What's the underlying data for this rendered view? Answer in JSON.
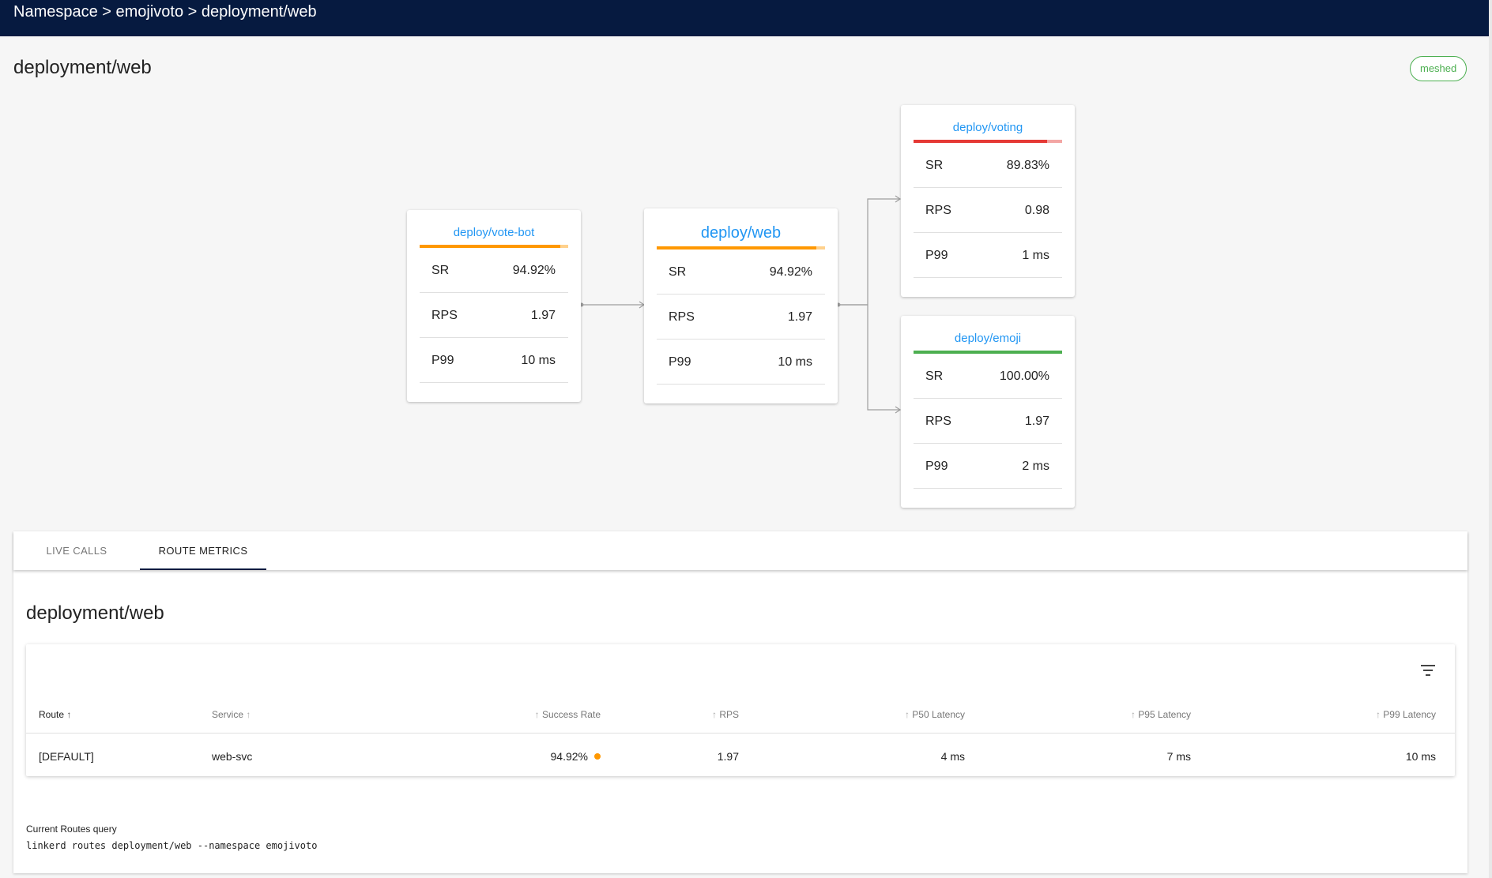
{
  "breadcrumb": {
    "namespace": "Namespace",
    "sep": " > ",
    "ns_name": "emojivoto",
    "resource": "deployment/web"
  },
  "page": {
    "title": "deployment/web",
    "badge": "meshed"
  },
  "graph": {
    "nodes": {
      "votebot": {
        "title": "deploy/vote-bot",
        "sr": "94.92%",
        "rps": "1.97",
        "p99": "10 ms",
        "sr_fraction": 0.9492,
        "color": "#ff9800"
      },
      "web": {
        "title": "deploy/web",
        "sr": "94.92%",
        "rps": "1.97",
        "p99": "10 ms",
        "sr_fraction": 0.9492,
        "color": "#ff9800"
      },
      "voting": {
        "title": "deploy/voting",
        "sr": "89.83%",
        "rps": "0.98",
        "p99": "1 ms",
        "sr_fraction": 0.8983,
        "color": "#e53935"
      },
      "emoji": {
        "title": "deploy/emoji",
        "sr": "100.00%",
        "rps": "1.97",
        "p99": "2 ms",
        "sr_fraction": 1.0,
        "color": "#4caf50"
      }
    },
    "labels": {
      "sr": "SR",
      "rps": "RPS",
      "p99": "P99"
    }
  },
  "tabs": [
    {
      "label": "LIVE CALLS"
    },
    {
      "label": "ROUTE METRICS"
    }
  ],
  "route_metrics": {
    "title": "deployment/web",
    "columns": {
      "route": "Route",
      "service": "Service",
      "success_rate": "Success Rate",
      "rps": "RPS",
      "p50": "P50 Latency",
      "p95": "P95 Latency",
      "p99": "P99 Latency"
    },
    "rows": [
      {
        "route": "[DEFAULT]",
        "service": "web-svc",
        "success_rate": "94.92%",
        "rps": "1.97",
        "p50": "4 ms",
        "p95": "7 ms",
        "p99": "10 ms"
      }
    ],
    "query_label": "Current Routes query",
    "query": "linkerd routes deployment/web --namespace emojivoto"
  },
  "icons": {
    "sort_up": "arrow-up-icon",
    "filter": "filter-icon"
  },
  "colors": {
    "header_bg": "#061a40",
    "link": "#2196f3",
    "meshed": "#4caf50",
    "warning": "#ff9800",
    "error": "#e53935"
  }
}
